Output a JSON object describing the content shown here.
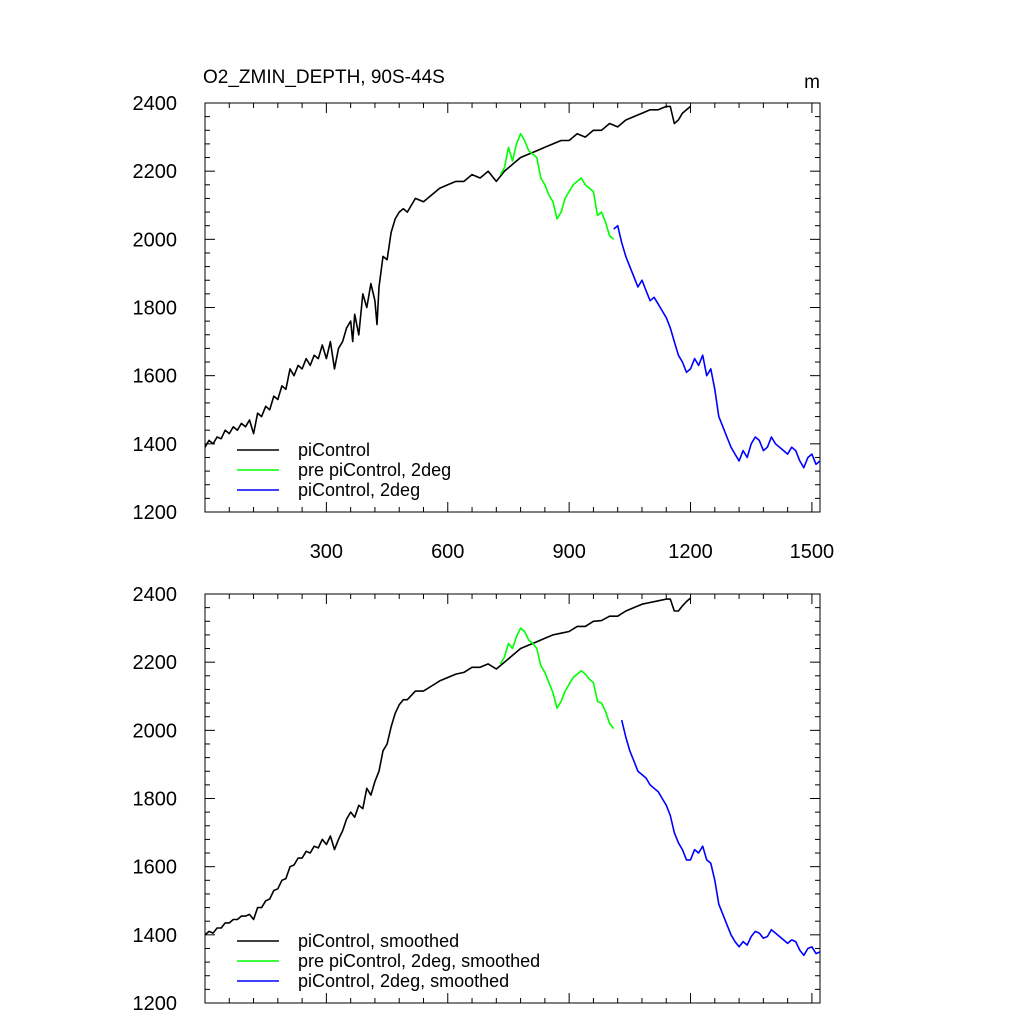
{
  "figure": {
    "title": "O2_ZMIN_DEPTH, 90S-44S",
    "units": "m"
  },
  "chart_data": [
    {
      "type": "line",
      "title": "O2_ZMIN_DEPTH, 90S-44S",
      "units": "m",
      "xlim": [
        0,
        1520
      ],
      "ylim": [
        1200,
        2400
      ],
      "x_ticks": [
        300,
        600,
        900,
        1200,
        1500
      ],
      "y_ticks": [
        1200,
        1400,
        1600,
        1800,
        2000,
        2200,
        2400
      ],
      "legend_position": "bottom-left",
      "legend": [
        "piControl",
        "pre piControl, 2deg",
        "piControl, 2deg"
      ],
      "series": [
        {
          "name": "piControl",
          "color": "#000000",
          "x": [
            0,
            10,
            20,
            30,
            40,
            50,
            60,
            70,
            80,
            90,
            100,
            110,
            120,
            130,
            140,
            150,
            160,
            170,
            180,
            190,
            200,
            210,
            220,
            230,
            240,
            250,
            260,
            270,
            280,
            290,
            300,
            310,
            320,
            330,
            340,
            350,
            360,
            365,
            370,
            380,
            390,
            400,
            410,
            420,
            425,
            430,
            440,
            450,
            460,
            470,
            480,
            490,
            500,
            520,
            540,
            560,
            580,
            600,
            620,
            640,
            660,
            680,
            700,
            720,
            740,
            760,
            780,
            800,
            820,
            840,
            860,
            880,
            900,
            920,
            940,
            960,
            980,
            1000,
            1020,
            1040,
            1060,
            1080,
            1100,
            1120,
            1140,
            1150,
            1160,
            1170,
            1180,
            1190,
            1200
          ],
          "values": [
            1390,
            1410,
            1400,
            1420,
            1415,
            1440,
            1430,
            1450,
            1440,
            1460,
            1450,
            1470,
            1430,
            1490,
            1480,
            1510,
            1500,
            1540,
            1530,
            1570,
            1560,
            1620,
            1600,
            1630,
            1620,
            1650,
            1630,
            1660,
            1650,
            1690,
            1650,
            1700,
            1620,
            1680,
            1700,
            1740,
            1760,
            1700,
            1780,
            1720,
            1840,
            1800,
            1870,
            1820,
            1750,
            1860,
            1950,
            1940,
            2020,
            2060,
            2080,
            2090,
            2080,
            2120,
            2110,
            2130,
            2150,
            2160,
            2170,
            2170,
            2190,
            2180,
            2200,
            2170,
            2200,
            2220,
            2240,
            2250,
            2260,
            2270,
            2280,
            2290,
            2290,
            2310,
            2300,
            2320,
            2320,
            2340,
            2330,
            2350,
            2360,
            2370,
            2380,
            2380,
            2390,
            2390,
            2340,
            2350,
            2370,
            2380,
            2390
          ]
        },
        {
          "name": "pre piControl, 2deg",
          "color": "#00ff00",
          "x": [
            730,
            740,
            750,
            760,
            770,
            780,
            790,
            800,
            810,
            820,
            830,
            840,
            850,
            860,
            870,
            880,
            890,
            900,
            910,
            920,
            930,
            940,
            950,
            960,
            970,
            980,
            990,
            1000,
            1010
          ],
          "values": [
            2190,
            2210,
            2270,
            2230,
            2280,
            2310,
            2290,
            2260,
            2250,
            2240,
            2180,
            2160,
            2130,
            2110,
            2060,
            2080,
            2120,
            2140,
            2160,
            2170,
            2180,
            2160,
            2150,
            2140,
            2070,
            2080,
            2050,
            2010,
            2000
          ]
        },
        {
          "name": "piControl, 2deg",
          "color": "#0000ff",
          "x": [
            1010,
            1020,
            1030,
            1040,
            1050,
            1060,
            1070,
            1080,
            1090,
            1100,
            1110,
            1120,
            1130,
            1140,
            1150,
            1160,
            1170,
            1180,
            1190,
            1200,
            1210,
            1220,
            1230,
            1240,
            1250,
            1260,
            1270,
            1280,
            1290,
            1300,
            1310,
            1320,
            1330,
            1340,
            1350,
            1360,
            1370,
            1380,
            1390,
            1400,
            1410,
            1420,
            1430,
            1440,
            1450,
            1460,
            1470,
            1480,
            1490,
            1500,
            1510,
            1520
          ],
          "values": [
            2030,
            2040,
            1990,
            1950,
            1920,
            1890,
            1860,
            1880,
            1850,
            1820,
            1830,
            1810,
            1790,
            1770,
            1740,
            1700,
            1660,
            1640,
            1610,
            1620,
            1650,
            1630,
            1660,
            1600,
            1620,
            1560,
            1480,
            1450,
            1420,
            1390,
            1370,
            1350,
            1380,
            1360,
            1400,
            1420,
            1410,
            1380,
            1390,
            1420,
            1400,
            1390,
            1380,
            1370,
            1390,
            1380,
            1350,
            1330,
            1360,
            1370,
            1340,
            1350
          ]
        }
      ]
    },
    {
      "type": "line",
      "xlim": [
        0,
        1520
      ],
      "ylim": [
        1200,
        2400
      ],
      "x_ticks": [
        300,
        600,
        900,
        1200,
        1500
      ],
      "y_ticks": [
        1200,
        1400,
        1600,
        1800,
        2000,
        2200,
        2400
      ],
      "legend_position": "bottom-left",
      "legend": [
        "piControl, smoothed",
        "pre piControl, 2deg, smoothed",
        "piControl, 2deg, smoothed"
      ],
      "series": [
        {
          "name": "piControl, smoothed",
          "color": "#000000",
          "x": [
            0,
            10,
            20,
            30,
            40,
            50,
            60,
            70,
            80,
            90,
            100,
            110,
            120,
            130,
            140,
            150,
            160,
            170,
            180,
            190,
            200,
            210,
            220,
            230,
            240,
            250,
            260,
            270,
            280,
            290,
            300,
            310,
            320,
            330,
            340,
            350,
            360,
            370,
            380,
            390,
            400,
            410,
            420,
            430,
            440,
            450,
            460,
            470,
            480,
            490,
            500,
            520,
            540,
            560,
            580,
            600,
            620,
            640,
            660,
            680,
            700,
            720,
            740,
            760,
            780,
            800,
            820,
            840,
            860,
            880,
            900,
            920,
            940,
            960,
            980,
            1000,
            1020,
            1040,
            1060,
            1080,
            1100,
            1120,
            1140,
            1150,
            1160,
            1170,
            1180,
            1190,
            1200
          ],
          "values": [
            1400,
            1410,
            1405,
            1420,
            1420,
            1435,
            1435,
            1445,
            1445,
            1455,
            1455,
            1460,
            1445,
            1480,
            1480,
            1500,
            1505,
            1530,
            1535,
            1560,
            1565,
            1600,
            1605,
            1625,
            1625,
            1645,
            1640,
            1660,
            1655,
            1680,
            1665,
            1690,
            1650,
            1680,
            1705,
            1740,
            1760,
            1745,
            1780,
            1770,
            1830,
            1810,
            1850,
            1880,
            1940,
            1960,
            2010,
            2050,
            2075,
            2090,
            2090,
            2115,
            2115,
            2130,
            2145,
            2155,
            2165,
            2170,
            2185,
            2185,
            2195,
            2180,
            2200,
            2220,
            2240,
            2250,
            2260,
            2270,
            2280,
            2285,
            2290,
            2305,
            2305,
            2320,
            2322,
            2335,
            2335,
            2350,
            2360,
            2370,
            2375,
            2380,
            2385,
            2385,
            2350,
            2350,
            2365,
            2378,
            2388
          ]
        },
        {
          "name": "pre piControl, 2deg, smoothed",
          "color": "#00ff00",
          "x": [
            730,
            740,
            750,
            760,
            770,
            780,
            790,
            800,
            810,
            820,
            830,
            840,
            850,
            860,
            870,
            880,
            890,
            900,
            910,
            920,
            930,
            940,
            950,
            960,
            970,
            980,
            990,
            1000,
            1010
          ],
          "values": [
            2195,
            2215,
            2255,
            2240,
            2275,
            2300,
            2290,
            2265,
            2255,
            2240,
            2190,
            2170,
            2140,
            2110,
            2065,
            2085,
            2115,
            2135,
            2155,
            2165,
            2175,
            2165,
            2150,
            2140,
            2085,
            2080,
            2055,
            2020,
            2005
          ]
        },
        {
          "name": "piControl, 2deg, smoothed",
          "color": "#0000ff",
          "x": [
            1030,
            1040,
            1050,
            1060,
            1070,
            1080,
            1090,
            1100,
            1110,
            1120,
            1130,
            1140,
            1150,
            1160,
            1170,
            1180,
            1190,
            1200,
            1210,
            1220,
            1230,
            1240,
            1250,
            1260,
            1270,
            1280,
            1290,
            1300,
            1310,
            1320,
            1330,
            1340,
            1350,
            1360,
            1370,
            1380,
            1390,
            1400,
            1410,
            1420,
            1430,
            1440,
            1450,
            1460,
            1470,
            1480,
            1490,
            1500,
            1510,
            1520
          ],
          "values": [
            2030,
            1980,
            1940,
            1910,
            1880,
            1870,
            1860,
            1840,
            1830,
            1820,
            1800,
            1780,
            1750,
            1700,
            1670,
            1650,
            1620,
            1620,
            1650,
            1640,
            1660,
            1620,
            1610,
            1560,
            1490,
            1460,
            1430,
            1400,
            1380,
            1365,
            1380,
            1370,
            1395,
            1410,
            1405,
            1390,
            1395,
            1415,
            1405,
            1395,
            1385,
            1375,
            1385,
            1380,
            1355,
            1340,
            1360,
            1365,
            1345,
            1350
          ]
        }
      ]
    }
  ]
}
